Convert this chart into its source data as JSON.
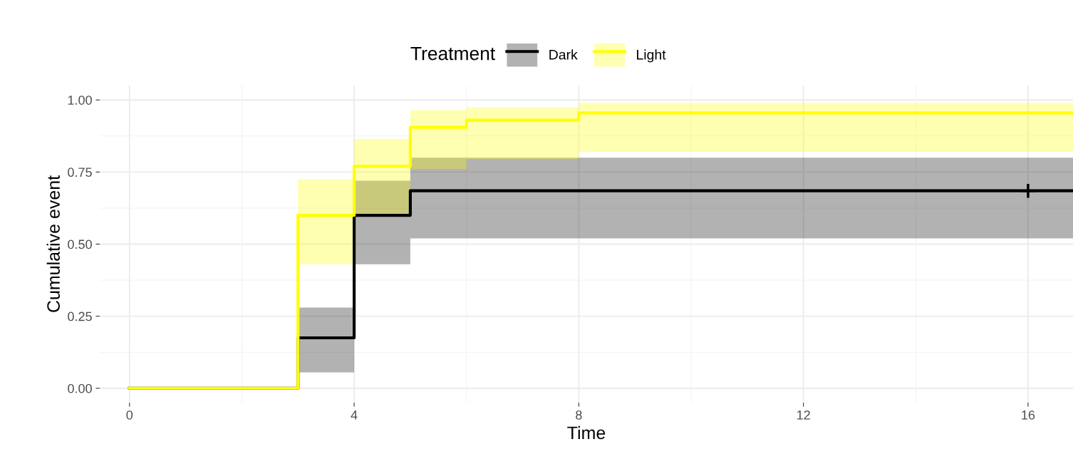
{
  "chart_data": {
    "type": "step",
    "xlabel": "Time",
    "ylabel": "Cumulative event",
    "legend_title": "Treatment",
    "legend": "top",
    "grid": true,
    "xlim": [
      -0.53,
      16.8
    ],
    "ylim": [
      -0.05,
      1.05
    ],
    "xticks": [
      0,
      4,
      8,
      12,
      16
    ],
    "yticks": [
      {
        "value": 0,
        "label": "0.00"
      },
      {
        "value": 0.25,
        "label": "0.25"
      },
      {
        "value": 0.5,
        "label": "0.50"
      },
      {
        "value": 0.75,
        "label": "0.75"
      },
      {
        "value": 1,
        "label": "1.00"
      }
    ],
    "series": [
      {
        "name": "Dark",
        "color": "#000000",
        "x": [
          0,
          3,
          4,
          5,
          16.8
        ],
        "values": [
          0,
          0.175,
          0.6,
          0.685,
          0.685
        ],
        "lower": [
          0,
          0.055,
          0.43,
          0.52,
          0.52
        ],
        "upper": [
          0,
          0.28,
          0.72,
          0.8,
          0.8
        ]
      },
      {
        "name": "Light",
        "color": "#ffff00",
        "x": [
          0,
          3,
          4,
          5,
          6,
          8,
          16.8
        ],
        "values": [
          0,
          0.6,
          0.77,
          0.905,
          0.93,
          0.955,
          0.955
        ],
        "lower": [
          0,
          0.43,
          0.6,
          0.76,
          0.795,
          0.82,
          0.82
        ],
        "upper": [
          0,
          0.725,
          0.865,
          0.965,
          0.975,
          0.99,
          0.99
        ]
      },
      {
        "type": "scatter",
        "marker": "cross",
        "color": "#000000",
        "x": [
          16
        ],
        "values": [
          0.685
        ]
      }
    ]
  }
}
